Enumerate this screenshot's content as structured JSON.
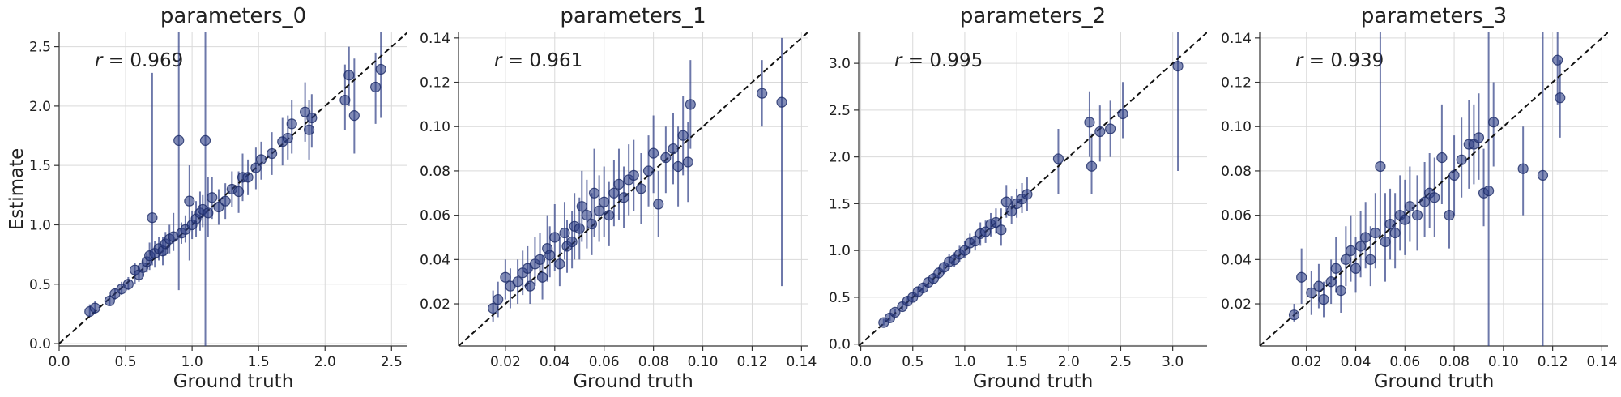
{
  "chart_data": [
    {
      "type": "scatter",
      "title": "parameters_0",
      "xlabel": "Ground truth",
      "ylabel": "Estimate",
      "xlim": [
        0,
        2.62
      ],
      "ylim": [
        -0.02,
        2.62
      ],
      "xticks": [
        0.0,
        0.5,
        1.0,
        1.5,
        2.0,
        2.5
      ],
      "yticks": [
        0.0,
        0.5,
        1.0,
        1.5,
        2.0,
        2.5
      ],
      "xtick_labels": [
        "0.0",
        "0.5",
        "1.0",
        "1.5",
        "2.0",
        "2.5"
      ],
      "ytick_labels": [
        "0.0",
        "0.5",
        "1.0",
        "1.5",
        "2.0",
        "2.5"
      ],
      "annotation": {
        "r_symbol": "r",
        "r_text": " = 0.969"
      },
      "points": [
        [
          0.23,
          0.27,
          0.23,
          0.33
        ],
        [
          0.27,
          0.3,
          0.25,
          0.36
        ],
        [
          0.38,
          0.36,
          0.32,
          0.41
        ],
        [
          0.42,
          0.42,
          0.37,
          0.47
        ],
        [
          0.47,
          0.46,
          0.41,
          0.52
        ],
        [
          0.52,
          0.5,
          0.45,
          0.56
        ],
        [
          0.57,
          0.62,
          0.5,
          0.68
        ],
        [
          0.6,
          0.58,
          0.52,
          0.65
        ],
        [
          0.63,
          0.64,
          0.56,
          0.72
        ],
        [
          0.66,
          0.69,
          0.6,
          0.76
        ],
        [
          0.68,
          0.74,
          0.62,
          0.85
        ],
        [
          0.7,
          1.06,
          0.66,
          2.28
        ],
        [
          0.72,
          0.76,
          0.64,
          0.86
        ],
        [
          0.75,
          0.8,
          0.7,
          0.9
        ],
        [
          0.78,
          0.78,
          0.66,
          0.9
        ],
        [
          0.8,
          0.84,
          0.74,
          0.94
        ],
        [
          0.83,
          0.88,
          0.76,
          1.0
        ],
        [
          0.86,
          0.9,
          0.78,
          1.1
        ],
        [
          0.9,
          1.71,
          0.45,
          2.62
        ],
        [
          0.92,
          0.93,
          0.84,
          1.02
        ],
        [
          0.95,
          0.96,
          0.85,
          1.08
        ],
        [
          0.98,
          1.2,
          0.7,
          1.5
        ],
        [
          1.0,
          1.0,
          0.88,
          1.12
        ],
        [
          1.03,
          1.05,
          0.9,
          1.2
        ],
        [
          1.06,
          1.1,
          0.95,
          1.28
        ],
        [
          1.08,
          1.13,
          0.98,
          1.25
        ],
        [
          1.1,
          1.71,
          -0.02,
          2.62
        ],
        [
          1.12,
          1.1,
          0.9,
          1.4
        ],
        [
          1.15,
          1.23,
          1.05,
          1.4
        ],
        [
          1.2,
          1.15,
          1.0,
          1.3
        ],
        [
          1.25,
          1.2,
          1.05,
          1.35
        ],
        [
          1.3,
          1.3,
          1.15,
          1.45
        ],
        [
          1.35,
          1.28,
          1.1,
          1.45
        ],
        [
          1.38,
          1.4,
          1.2,
          1.6
        ],
        [
          1.42,
          1.4,
          1.25,
          1.55
        ],
        [
          1.48,
          1.48,
          1.3,
          1.65
        ],
        [
          1.52,
          1.55,
          1.38,
          1.7
        ],
        [
          1.6,
          1.6,
          1.42,
          1.78
        ],
        [
          1.68,
          1.7,
          1.5,
          1.9
        ],
        [
          1.72,
          1.73,
          1.55,
          1.92
        ],
        [
          1.75,
          1.85,
          1.6,
          2.05
        ],
        [
          1.85,
          1.95,
          1.7,
          2.2
        ],
        [
          1.88,
          1.8,
          1.55,
          2.05
        ],
        [
          1.9,
          1.9,
          1.65,
          2.1
        ],
        [
          2.15,
          2.05,
          1.8,
          2.35
        ],
        [
          2.18,
          2.26,
          2.0,
          2.5
        ],
        [
          2.22,
          1.92,
          1.6,
          2.4
        ],
        [
          2.38,
          2.16,
          1.85,
          2.45
        ],
        [
          2.42,
          2.31,
          1.9,
          2.62
        ]
      ]
    },
    {
      "type": "scatter",
      "title": "parameters_1",
      "xlabel": "Ground truth",
      "ylabel": "",
      "xlim": [
        0.001,
        0.1425
      ],
      "ylim": [
        0.001,
        0.1425
      ],
      "xticks": [
        0.02,
        0.04,
        0.06,
        0.08,
        0.1,
        0.12,
        0.14
      ],
      "yticks": [
        0.02,
        0.04,
        0.06,
        0.08,
        0.1,
        0.12,
        0.14
      ],
      "xtick_labels": [
        "0.02",
        "0.04",
        "0.06",
        "0.08",
        "0.10",
        "0.12",
        "0.14"
      ],
      "ytick_labels": [
        "0.02",
        "0.04",
        "0.06",
        "0.08",
        "0.10",
        "0.12",
        "0.14"
      ],
      "annotation": {
        "r_symbol": "r",
        "r_text": " = 0.961"
      },
      "points": [
        [
          0.015,
          0.018,
          0.012,
          0.026
        ],
        [
          0.017,
          0.022,
          0.014,
          0.03
        ],
        [
          0.02,
          0.032,
          0.022,
          0.04
        ],
        [
          0.022,
          0.028,
          0.018,
          0.036
        ],
        [
          0.025,
          0.03,
          0.02,
          0.04
        ],
        [
          0.027,
          0.034,
          0.024,
          0.044
        ],
        [
          0.029,
          0.036,
          0.026,
          0.046
        ],
        [
          0.03,
          0.028,
          0.02,
          0.038
        ],
        [
          0.032,
          0.038,
          0.028,
          0.05
        ],
        [
          0.034,
          0.04,
          0.03,
          0.052
        ],
        [
          0.035,
          0.032,
          0.022,
          0.042
        ],
        [
          0.037,
          0.045,
          0.03,
          0.06
        ],
        [
          0.038,
          0.042,
          0.032,
          0.055
        ],
        [
          0.04,
          0.05,
          0.035,
          0.065
        ],
        [
          0.042,
          0.038,
          0.028,
          0.05
        ],
        [
          0.044,
          0.052,
          0.04,
          0.066
        ],
        [
          0.045,
          0.046,
          0.034,
          0.058
        ],
        [
          0.047,
          0.048,
          0.036,
          0.062
        ],
        [
          0.048,
          0.055,
          0.04,
          0.07
        ],
        [
          0.05,
          0.054,
          0.04,
          0.068
        ],
        [
          0.051,
          0.064,
          0.048,
          0.08
        ],
        [
          0.053,
          0.06,
          0.045,
          0.076
        ],
        [
          0.055,
          0.056,
          0.042,
          0.07
        ],
        [
          0.056,
          0.07,
          0.05,
          0.09
        ],
        [
          0.058,
          0.062,
          0.048,
          0.078
        ],
        [
          0.06,
          0.066,
          0.05,
          0.082
        ],
        [
          0.062,
          0.06,
          0.046,
          0.075
        ],
        [
          0.064,
          0.07,
          0.055,
          0.085
        ],
        [
          0.066,
          0.074,
          0.058,
          0.09
        ],
        [
          0.068,
          0.068,
          0.054,
          0.082
        ],
        [
          0.07,
          0.076,
          0.06,
          0.092
        ],
        [
          0.072,
          0.078,
          0.062,
          0.094
        ],
        [
          0.075,
          0.072,
          0.056,
          0.088
        ],
        [
          0.078,
          0.08,
          0.064,
          0.096
        ],
        [
          0.08,
          0.088,
          0.07,
          0.105
        ],
        [
          0.082,
          0.065,
          0.05,
          0.08
        ],
        [
          0.085,
          0.086,
          0.07,
          0.1
        ],
        [
          0.088,
          0.09,
          0.074,
          0.106
        ],
        [
          0.09,
          0.082,
          0.064,
          0.1
        ],
        [
          0.092,
          0.096,
          0.078,
          0.114
        ],
        [
          0.094,
          0.084,
          0.066,
          0.102
        ],
        [
          0.095,
          0.11,
          0.09,
          0.13
        ],
        [
          0.124,
          0.115,
          0.1,
          0.13
        ],
        [
          0.132,
          0.111,
          0.028,
          0.14
        ]
      ]
    },
    {
      "type": "scatter",
      "title": "parameters_2",
      "xlabel": "Ground truth",
      "ylabel": "",
      "xlim": [
        -0.02,
        3.33
      ],
      "ylim": [
        -0.02,
        3.33
      ],
      "xticks": [
        0.0,
        0.5,
        1.0,
        1.5,
        2.0,
        2.5,
        3.0
      ],
      "yticks": [
        0.0,
        0.5,
        1.0,
        1.5,
        2.0,
        2.5,
        3.0
      ],
      "xtick_labels": [
        "0.0",
        "0.5",
        "1.0",
        "1.5",
        "2.0",
        "2.5",
        "3.0"
      ],
      "ytick_labels": [
        "0.0",
        "0.5",
        "1.0",
        "1.5",
        "2.0",
        "2.5",
        "3.0"
      ],
      "annotation": {
        "r_symbol": "r",
        "r_text": " = 0.995"
      },
      "points": [
        [
          0.22,
          0.23,
          0.2,
          0.27
        ],
        [
          0.28,
          0.28,
          0.25,
          0.32
        ],
        [
          0.33,
          0.34,
          0.3,
          0.38
        ],
        [
          0.4,
          0.4,
          0.36,
          0.45
        ],
        [
          0.45,
          0.46,
          0.42,
          0.51
        ],
        [
          0.5,
          0.5,
          0.46,
          0.55
        ],
        [
          0.55,
          0.56,
          0.51,
          0.61
        ],
        [
          0.6,
          0.6,
          0.55,
          0.66
        ],
        [
          0.65,
          0.66,
          0.6,
          0.72
        ],
        [
          0.7,
          0.7,
          0.64,
          0.76
        ],
        [
          0.75,
          0.76,
          0.7,
          0.82
        ],
        [
          0.8,
          0.82,
          0.75,
          0.88
        ],
        [
          0.85,
          0.88,
          0.8,
          0.96
        ],
        [
          0.9,
          0.9,
          0.82,
          0.98
        ],
        [
          0.95,
          0.96,
          0.88,
          1.05
        ],
        [
          1.0,
          1.0,
          0.92,
          1.1
        ],
        [
          1.05,
          1.08,
          0.98,
          1.18
        ],
        [
          1.1,
          1.1,
          1.0,
          1.2
        ],
        [
          1.15,
          1.18,
          1.05,
          1.3
        ],
        [
          1.2,
          1.2,
          1.08,
          1.32
        ],
        [
          1.25,
          1.28,
          1.15,
          1.4
        ],
        [
          1.3,
          1.3,
          1.18,
          1.45
        ],
        [
          1.35,
          1.22,
          1.05,
          1.45
        ],
        [
          1.4,
          1.52,
          1.35,
          1.7
        ],
        [
          1.45,
          1.42,
          1.28,
          1.58
        ],
        [
          1.5,
          1.5,
          1.35,
          1.66
        ],
        [
          1.55,
          1.55,
          1.4,
          1.72
        ],
        [
          1.6,
          1.6,
          1.42,
          1.78
        ],
        [
          1.9,
          1.98,
          1.6,
          2.3
        ],
        [
          2.2,
          2.37,
          2.0,
          2.7
        ],
        [
          2.22,
          1.9,
          1.6,
          2.25
        ],
        [
          2.3,
          2.27,
          1.95,
          2.55
        ],
        [
          2.4,
          2.3,
          2.0,
          2.6
        ],
        [
          2.52,
          2.46,
          2.2,
          2.8
        ],
        [
          3.05,
          2.97,
          1.85,
          3.33
        ]
      ]
    },
    {
      "type": "scatter",
      "title": "parameters_3",
      "xlabel": "Ground truth",
      "ylabel": "",
      "xlim": [
        0.001,
        0.1425
      ],
      "ylim": [
        0.001,
        0.1425
      ],
      "xticks": [
        0.02,
        0.04,
        0.06,
        0.08,
        0.1,
        0.12,
        0.14
      ],
      "yticks": [
        0.02,
        0.04,
        0.06,
        0.08,
        0.1,
        0.12,
        0.14
      ],
      "xtick_labels": [
        "0.02",
        "0.04",
        "0.06",
        "0.08",
        "0.10",
        "0.12",
        "0.14"
      ],
      "ytick_labels": [
        "0.02",
        "0.04",
        "0.06",
        "0.08",
        "0.10",
        "0.12",
        "0.14"
      ],
      "annotation": {
        "r_symbol": "r",
        "r_text": " = 0.939"
      },
      "points": [
        [
          0.015,
          0.015,
          0.012,
          0.02
        ],
        [
          0.018,
          0.032,
          0.02,
          0.045
        ],
        [
          0.022,
          0.025,
          0.015,
          0.035
        ],
        [
          0.025,
          0.028,
          0.018,
          0.038
        ],
        [
          0.027,
          0.022,
          0.014,
          0.03
        ],
        [
          0.03,
          0.03,
          0.02,
          0.04
        ],
        [
          0.032,
          0.036,
          0.025,
          0.05
        ],
        [
          0.034,
          0.026,
          0.016,
          0.036
        ],
        [
          0.036,
          0.04,
          0.028,
          0.055
        ],
        [
          0.038,
          0.044,
          0.03,
          0.06
        ],
        [
          0.04,
          0.036,
          0.025,
          0.05
        ],
        [
          0.042,
          0.046,
          0.032,
          0.062
        ],
        [
          0.044,
          0.05,
          0.036,
          0.066
        ],
        [
          0.046,
          0.04,
          0.028,
          0.055
        ],
        [
          0.048,
          0.052,
          0.036,
          0.07
        ],
        [
          0.05,
          0.082,
          0.05,
          0.1425
        ],
        [
          0.052,
          0.048,
          0.03,
          0.07
        ],
        [
          0.054,
          0.056,
          0.04,
          0.072
        ],
        [
          0.056,
          0.052,
          0.036,
          0.07
        ],
        [
          0.058,
          0.06,
          0.044,
          0.078
        ],
        [
          0.06,
          0.058,
          0.042,
          0.076
        ],
        [
          0.062,
          0.064,
          0.048,
          0.082
        ],
        [
          0.065,
          0.06,
          0.044,
          0.078
        ],
        [
          0.068,
          0.066,
          0.05,
          0.084
        ],
        [
          0.07,
          0.07,
          0.054,
          0.088
        ],
        [
          0.072,
          0.068,
          0.05,
          0.086
        ],
        [
          0.075,
          0.086,
          0.065,
          0.11
        ],
        [
          0.078,
          0.06,
          0.045,
          0.078
        ],
        [
          0.08,
          0.078,
          0.06,
          0.096
        ],
        [
          0.083,
          0.085,
          0.068,
          0.104
        ],
        [
          0.086,
          0.092,
          0.072,
          0.112
        ],
        [
          0.088,
          0.092,
          0.074,
          0.11
        ],
        [
          0.09,
          0.095,
          0.076,
          0.115
        ],
        [
          0.092,
          0.07,
          0.055,
          0.09
        ],
        [
          0.094,
          0.071,
          0.0,
          0.1425
        ],
        [
          0.096,
          0.102,
          0.082,
          0.12
        ],
        [
          0.108,
          0.081,
          0.06,
          0.1
        ],
        [
          0.116,
          0.078,
          0.0,
          0.1425
        ],
        [
          0.122,
          0.13,
          0.11,
          0.1425
        ],
        [
          0.123,
          0.113,
          0.095,
          0.13
        ]
      ]
    }
  ]
}
